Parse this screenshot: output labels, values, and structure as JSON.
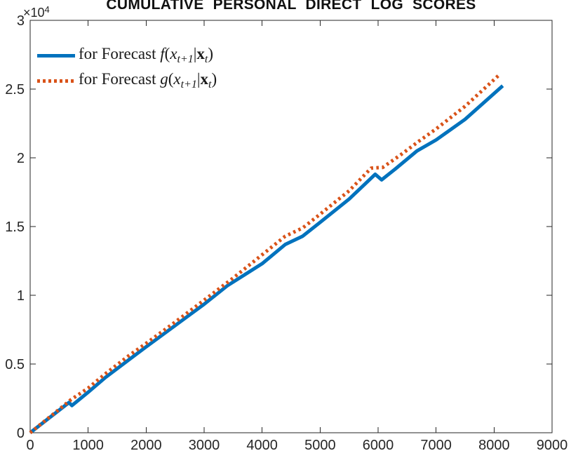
{
  "figure": {
    "background": "#ffffff"
  },
  "chart_data": {
    "type": "line",
    "title": "CUMULATIVE PERSONAL DIRECT LOG SCORES",
    "y_exponent": {
      "base": "×10",
      "exp": "4"
    },
    "xlabel": "",
    "ylabel": "",
    "xlim": [
      0,
      9000
    ],
    "ylim": [
      0,
      30000
    ],
    "grid": false,
    "box": true,
    "legend_position": "top-left",
    "axis_color": "#262626",
    "tick_label_color": "#262626",
    "x_ticks": [
      0,
      1000,
      2000,
      3000,
      4000,
      5000,
      6000,
      7000,
      8000,
      9000
    ],
    "x_tick_labels": [
      "0",
      "1000",
      "2000",
      "3000",
      "4000",
      "5000",
      "6000",
      "7000",
      "8000",
      "9000"
    ],
    "y_ticks": [
      0,
      5000,
      10000,
      15000,
      20000,
      25000,
      30000
    ],
    "y_tick_labels": [
      "0",
      "0.5",
      "1",
      "1.5",
      "2",
      "2.5",
      "3"
    ],
    "series": [
      {
        "id": "forecast-f",
        "name": "for Forecast f(x_t+1|x_t)",
        "color": "#0072BD",
        "line_style": "solid",
        "line_width": 5,
        "label_parts": [
          {
            "text": "for Forecast ",
            "style": "roman"
          },
          {
            "text": "f",
            "style": "italic"
          },
          {
            "text": "(",
            "style": "roman"
          },
          {
            "text": "x",
            "style": "italic"
          },
          {
            "text": "t+1",
            "style": "subscript"
          },
          {
            "text": "|",
            "style": "roman"
          },
          {
            "text": "x",
            "style": "bold"
          },
          {
            "text": "t",
            "style": "subscript"
          },
          {
            "text": ")",
            "style": "roman"
          }
        ],
        "points": [
          [
            0,
            0
          ],
          [
            250,
            820
          ],
          [
            500,
            1640
          ],
          [
            670,
            2200
          ],
          [
            720,
            1980
          ],
          [
            1000,
            2950
          ],
          [
            1300,
            4030
          ],
          [
            1700,
            5300
          ],
          [
            2000,
            6250
          ],
          [
            2500,
            7800
          ],
          [
            3000,
            9350
          ],
          [
            3400,
            10700
          ],
          [
            3700,
            11500
          ],
          [
            4000,
            12300
          ],
          [
            4400,
            13700
          ],
          [
            4700,
            14300
          ],
          [
            5000,
            15300
          ],
          [
            5500,
            17000
          ],
          [
            5950,
            18800
          ],
          [
            6060,
            18400
          ],
          [
            6300,
            19200
          ],
          [
            6670,
            20500
          ],
          [
            7000,
            21300
          ],
          [
            7500,
            22800
          ],
          [
            8150,
            25240
          ]
        ]
      },
      {
        "id": "forecast-g",
        "name": "for Forecast g(x_t+1|x_t)",
        "color": "#D95319",
        "line_style": "dotted",
        "line_width": 5,
        "label_parts": [
          {
            "text": "for Forecast ",
            "style": "roman"
          },
          {
            "text": "g",
            "style": "italic"
          },
          {
            "text": "(",
            "style": "roman"
          },
          {
            "text": "x",
            "style": "italic"
          },
          {
            "text": "t+1",
            "style": "subscript"
          },
          {
            "text": "|",
            "style": "roman"
          },
          {
            "text": "x",
            "style": "bold"
          },
          {
            "text": "t",
            "style": "subscript"
          },
          {
            "text": ")",
            "style": "roman"
          }
        ],
        "points": [
          [
            0,
            0
          ],
          [
            250,
            850
          ],
          [
            500,
            1700
          ],
          [
            700,
            2400
          ],
          [
            1000,
            3250
          ],
          [
            1300,
            4300
          ],
          [
            1700,
            5600
          ],
          [
            2000,
            6500
          ],
          [
            2500,
            8050
          ],
          [
            3000,
            9650
          ],
          [
            3500,
            11250
          ],
          [
            4000,
            12950
          ],
          [
            4400,
            14300
          ],
          [
            4700,
            14900
          ],
          [
            5000,
            15900
          ],
          [
            5500,
            17600
          ],
          [
            5880,
            19250
          ],
          [
            6080,
            19300
          ],
          [
            6400,
            20250
          ],
          [
            6700,
            21200
          ],
          [
            7000,
            22100
          ],
          [
            7500,
            23750
          ],
          [
            8110,
            26110
          ]
        ]
      }
    ]
  }
}
